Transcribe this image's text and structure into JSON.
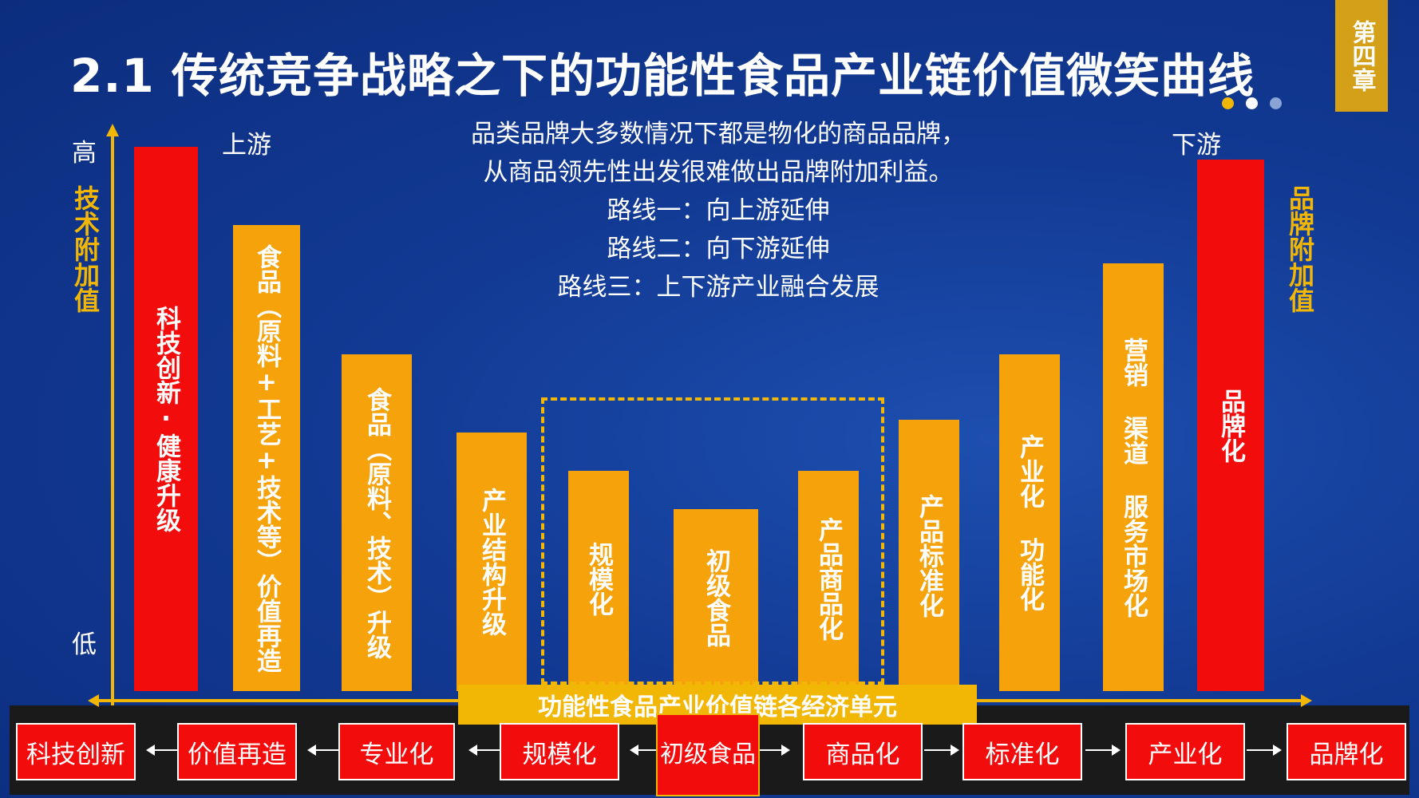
{
  "title": "2.1 传统竞争战略之下的功能性食品产业链价值微笑曲线",
  "chapter_tab": "第四章",
  "dots": [
    {
      "color": "#f2b705"
    },
    {
      "color": "#ffffff"
    },
    {
      "color": "#8aa4d6"
    }
  ],
  "axis": {
    "high": "高",
    "low": "低",
    "left_label": "技术附加值",
    "right_label": "品牌附加值",
    "upstream": "上游",
    "downstream": "下游",
    "x_label": "功能性食品产业价值链各经济单元"
  },
  "note_lines": [
    "品类品牌大多数情况下都是物化的商品品牌，",
    "从商品领先性出发很难做出品牌附加利益。",
    "路线一：向上游延伸",
    "路线二：向下游延伸",
    "路线三：上下游产业融合发展"
  ],
  "bars": [
    {
      "label": "科技创新·健康升级",
      "color": "red"
    },
    {
      "label": "食品（原料+工艺+技术等）价值再造",
      "color": "orange"
    },
    {
      "label": "食品（原料、技术）升级",
      "color": "orange"
    },
    {
      "label": "产业结构升级",
      "color": "orange"
    },
    {
      "label": "规模化",
      "color": "orange"
    },
    {
      "label": "初级食品",
      "color": "orange"
    },
    {
      "label": "产品商品化",
      "color": "orange"
    },
    {
      "label": "产品标准化",
      "color": "orange"
    },
    {
      "label": "产业化 功能化",
      "color": "orange"
    },
    {
      "label": "营销 渠道 服务市场化",
      "color": "orange"
    },
    {
      "label": "品牌化",
      "color": "red"
    }
  ],
  "stages": [
    "科技创新",
    "价值再造",
    "专业化",
    "规模化",
    "初级食品",
    "商品化",
    "标准化",
    "产业化",
    "品牌化"
  ],
  "colors": {
    "red": "#f20c0c",
    "orange": "#f5a20b",
    "gold": "#f2b705",
    "background": "#123a94"
  }
}
